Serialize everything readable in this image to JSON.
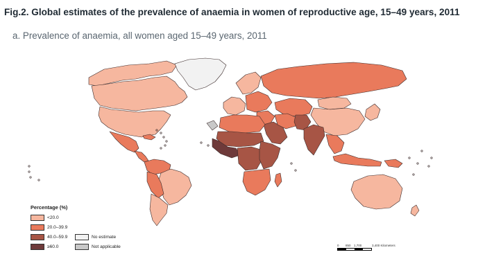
{
  "figure": {
    "title": "Fig.2. Global estimates of the prevalence of anaemia in women of reproductive age, 15–49 years, 2011",
    "subtitle": "a. Prevalence of anaemia, all women aged 15–49 years, 2011"
  },
  "legend": {
    "title": "Percentage (%)",
    "categories": [
      {
        "label": "<20.0",
        "color": "#f6b79f"
      },
      {
        "label": "20.0–39.9",
        "color": "#e97a5c"
      },
      {
        "label": "40.0–59.9",
        "color": "#a75545"
      },
      {
        "label": "≥60.0",
        "color": "#6e3a3a"
      }
    ],
    "extra": [
      {
        "label": "No estimate",
        "color": "#f2f2f2"
      },
      {
        "label": "Not applicable",
        "color": "#c8c8c8"
      }
    ]
  },
  "scale": {
    "labels": [
      "0",
      "850",
      "1,700",
      "3,400 Kilometers"
    ]
  },
  "colors": {
    "border": "#3a2a2a",
    "title_text": "#1f2a33",
    "subtitle_text": "#5a6670"
  },
  "map_regions": [
    {
      "name": "Alaska & Northern Canada",
      "category": "<20.0"
    },
    {
      "name": "Canada",
      "category": "<20.0"
    },
    {
      "name": "United States",
      "category": "<20.0"
    },
    {
      "name": "Greenland",
      "category": "No estimate"
    },
    {
      "name": "Mexico",
      "category": "20.0–39.9"
    },
    {
      "name": "Central America",
      "category": "20.0–39.9"
    },
    {
      "name": "Caribbean",
      "category": "20.0–39.9"
    },
    {
      "name": "Colombia & Venezuela",
      "category": "20.0–39.9"
    },
    {
      "name": "Brazil",
      "category": "<20.0"
    },
    {
      "name": "Peru & Bolivia",
      "category": "20.0–39.9"
    },
    {
      "name": "Argentina & Chile",
      "category": "<20.0"
    },
    {
      "name": "Western Europe",
      "category": "<20.0"
    },
    {
      "name": "Scandinavia",
      "category": "<20.0"
    },
    {
      "name": "Eastern Europe",
      "category": "20.0–39.9"
    },
    {
      "name": "Russia",
      "category": "20.0–39.9"
    },
    {
      "name": "Central Asia",
      "category": "20.0–39.9"
    },
    {
      "name": "China",
      "category": "<20.0"
    },
    {
      "name": "Mongolia",
      "category": "<20.0"
    },
    {
      "name": "Japan & Korea",
      "category": "<20.0"
    },
    {
      "name": "Middle East",
      "category": "20.0–39.9"
    },
    {
      "name": "Arabian Peninsula",
      "category": "40.0–59.9"
    },
    {
      "name": "Iran",
      "category": "20.0–39.9"
    },
    {
      "name": "Pakistan & Afghanistan",
      "category": "40.0–59.9"
    },
    {
      "name": "India",
      "category": "40.0–59.9"
    },
    {
      "name": "Southeast Asia",
      "category": "20.0–39.9"
    },
    {
      "name": "Indonesia",
      "category": "20.0–39.9"
    },
    {
      "name": "North Africa",
      "category": "20.0–39.9"
    },
    {
      "name": "West Africa",
      "category": "≥60.0"
    },
    {
      "name": "Sahel",
      "category": "40.0–59.9"
    },
    {
      "name": "Central Africa",
      "category": "40.0–59.9"
    },
    {
      "name": "East Africa",
      "category": "40.0–59.9"
    },
    {
      "name": "Southern Africa",
      "category": "20.0–39.9"
    },
    {
      "name": "Madagascar",
      "category": "20.0–39.9"
    },
    {
      "name": "Australia",
      "category": "<20.0"
    },
    {
      "name": "New Zealand",
      "category": "<20.0"
    },
    {
      "name": "Papua New Guinea",
      "category": "20.0–39.9"
    },
    {
      "name": "Western Sahara",
      "category": "Not applicable"
    }
  ]
}
